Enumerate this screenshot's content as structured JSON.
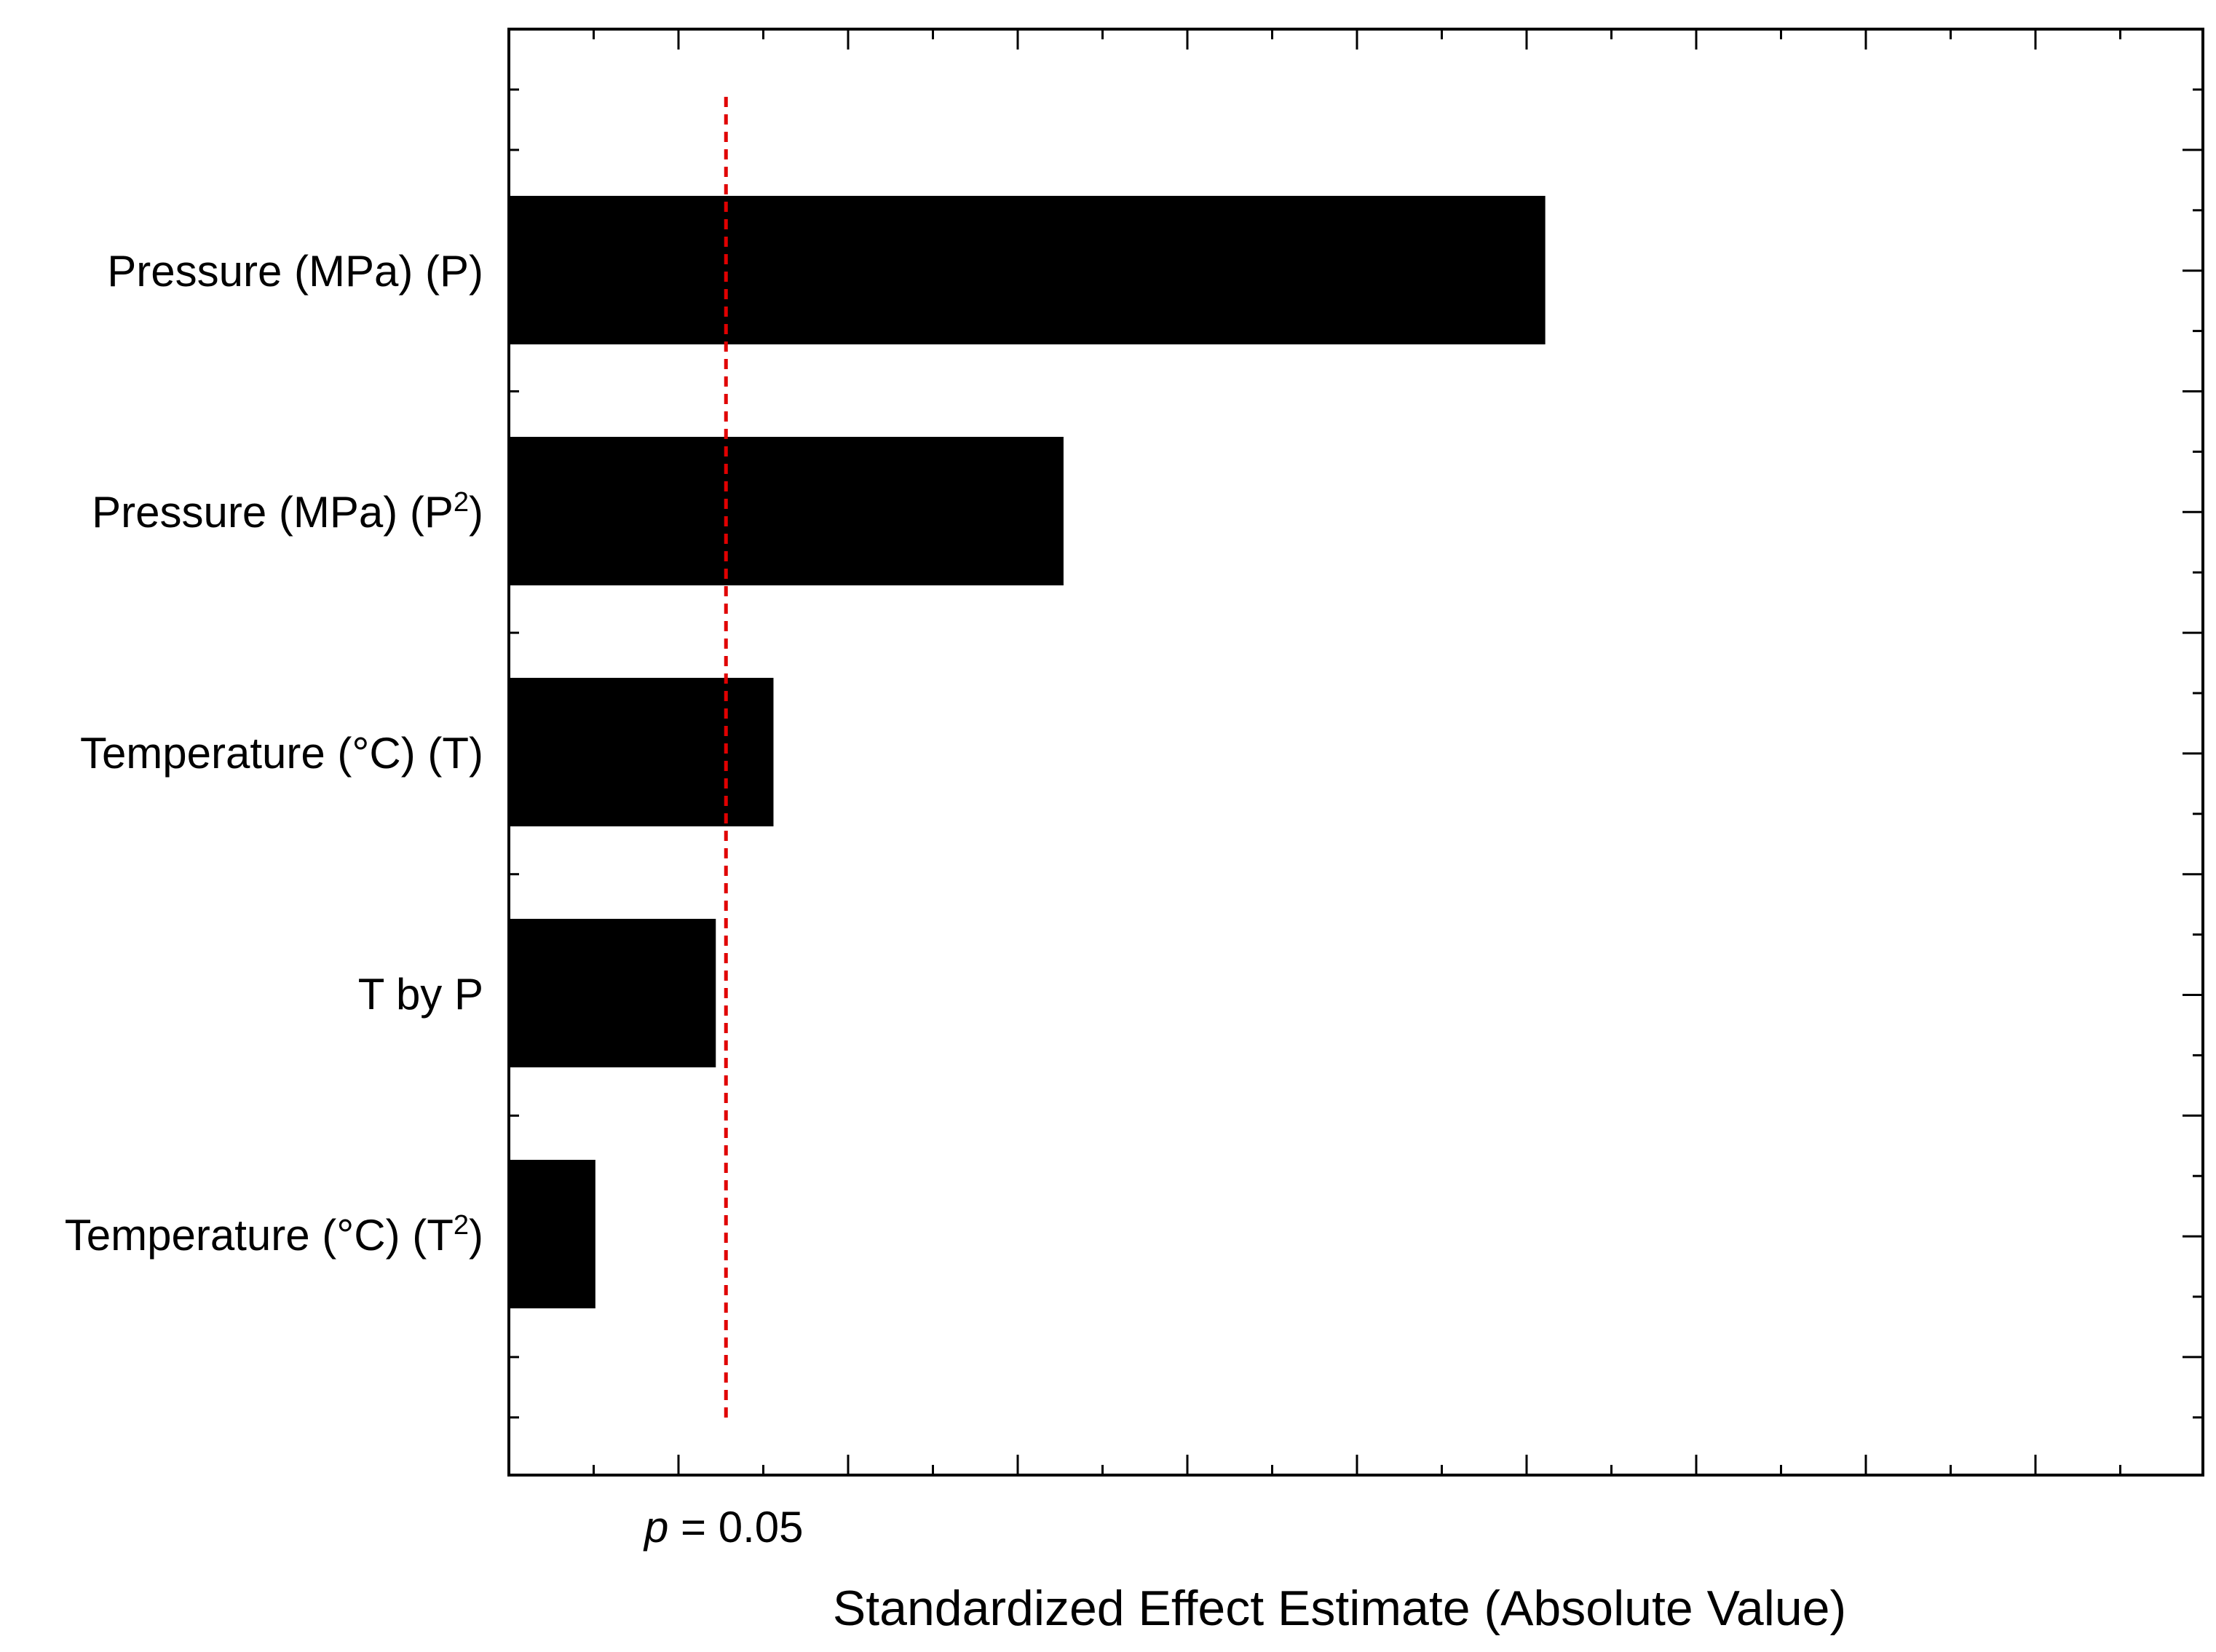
{
  "chart_data": {
    "type": "bar",
    "orientation": "horizontal",
    "title": "",
    "xlabel": "Standardized Effect Estimate (Absolute Value)",
    "ylabel": "",
    "categories": [
      {
        "base": "Pressure (MPa) (P)",
        "sup": "",
        "tail": ""
      },
      {
        "base": "Pressure (MPa) (P",
        "sup": "2",
        "tail": ")"
      },
      {
        "base": "Temperature (°C) (T)",
        "sup": "",
        "tail": ""
      },
      {
        "base": "T by P",
        "sup": "",
        "tail": ""
      },
      {
        "base": "Temperature (°C) (T",
        "sup": "2",
        "tail": ")"
      }
    ],
    "values": [
      6.11,
      3.27,
      1.56,
      1.22,
      0.51
    ],
    "xlim": [
      0,
      10
    ],
    "x_major_step": 1,
    "x_minor_step": 0.5,
    "tick_labels_shown": false,
    "reference_line": {
      "value": 1.28,
      "label_italic": "p",
      "label_rest": " = 0.05",
      "color": "#e00000",
      "style": "dashed"
    },
    "bar_color": "#000000",
    "grid": false,
    "legend": "none"
  }
}
